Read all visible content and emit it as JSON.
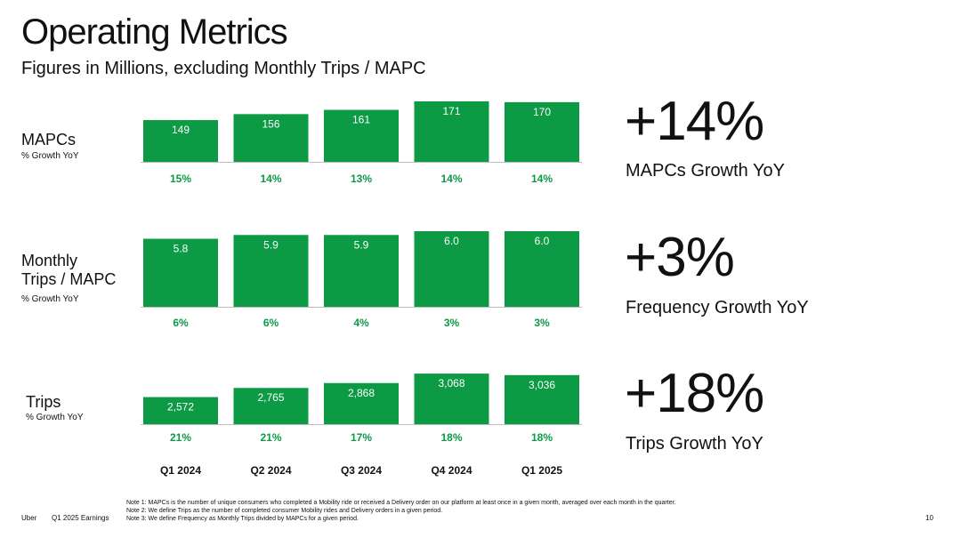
{
  "header": {
    "title": "Operating Metrics",
    "subtitle": "Figures in Millions, excluding Monthly Trips / MAPC"
  },
  "colors": {
    "bar": "#0c9a45",
    "growth_text": "#0c9a45",
    "bar_label": "#ffffff"
  },
  "chart_data": [
    {
      "type": "bar",
      "title": "MAPCs",
      "ylabel": "% Growth YoY",
      "categories": [
        "Q1 2024",
        "Q2 2024",
        "Q3 2024",
        "Q4 2024",
        "Q1 2025"
      ],
      "values": [
        149,
        156,
        161,
        171,
        170
      ],
      "labels": [
        "149",
        "156",
        "161",
        "171",
        "170"
      ],
      "growth": [
        "15%",
        "14%",
        "13%",
        "14%",
        "14%"
      ],
      "ylim": [
        100,
        172
      ]
    },
    {
      "type": "bar",
      "title": "Monthly Trips / MAPC",
      "ylabel": "% Growth YoY",
      "categories": [
        "Q1 2024",
        "Q2 2024",
        "Q3 2024",
        "Q4 2024",
        "Q1 2025"
      ],
      "values": [
        5.8,
        5.9,
        5.9,
        6.0,
        6.0
      ],
      "labels": [
        "5.8",
        "5.9",
        "5.9",
        "6.0",
        "6.0"
      ],
      "growth": [
        "6%",
        "6%",
        "4%",
        "3%",
        "3%"
      ],
      "ylim": [
        4.0,
        6.0
      ]
    },
    {
      "type": "bar",
      "title": "Trips",
      "ylabel": "% Growth YoY",
      "categories": [
        "Q1 2024",
        "Q2 2024",
        "Q3 2024",
        "Q4 2024",
        "Q1 2025"
      ],
      "values": [
        2572,
        2765,
        2868,
        3068,
        3036
      ],
      "labels": [
        "2,572",
        "2,765",
        "2,868",
        "3,068",
        "3,036"
      ],
      "growth": [
        "21%",
        "21%",
        "17%",
        "18%",
        "18%"
      ],
      "ylim": [
        2000,
        3070
      ]
    }
  ],
  "rows": [
    {
      "label_lines": [
        "MAPCs"
      ],
      "sub": "% Growth YoY"
    },
    {
      "label_lines": [
        "Monthly",
        "Trips / MAPC"
      ],
      "sub": "% Growth YoY"
    },
    {
      "label_lines": [
        "Trips"
      ],
      "sub": "% Growth YoY"
    }
  ],
  "kpis": [
    {
      "value": "+14%",
      "label": "MAPCs Growth YoY"
    },
    {
      "value": "+3%",
      "label": "Frequency Growth YoY"
    },
    {
      "value": "+18%",
      "label": "Trips Growth YoY"
    }
  ],
  "x_categories": [
    "Q1 2024",
    "Q2 2024",
    "Q3 2024",
    "Q4 2024",
    "Q1 2025"
  ],
  "notes": [
    "Note 1: MAPCs is the number of unique consumers who completed a Mobility ride or received a Delivery order on our platform at least once in a given month, averaged over each month in the quarter.",
    "Note 2: We define Trips as the number of completed consumer Mobility rides and Delivery orders in a given period.",
    "Note 3: We define Frequency as Monthly Trips divided by MAPCs for a given period."
  ],
  "footer": {
    "brand": "Uber",
    "doc": "Q1 2025 Earnings",
    "page": "10"
  }
}
